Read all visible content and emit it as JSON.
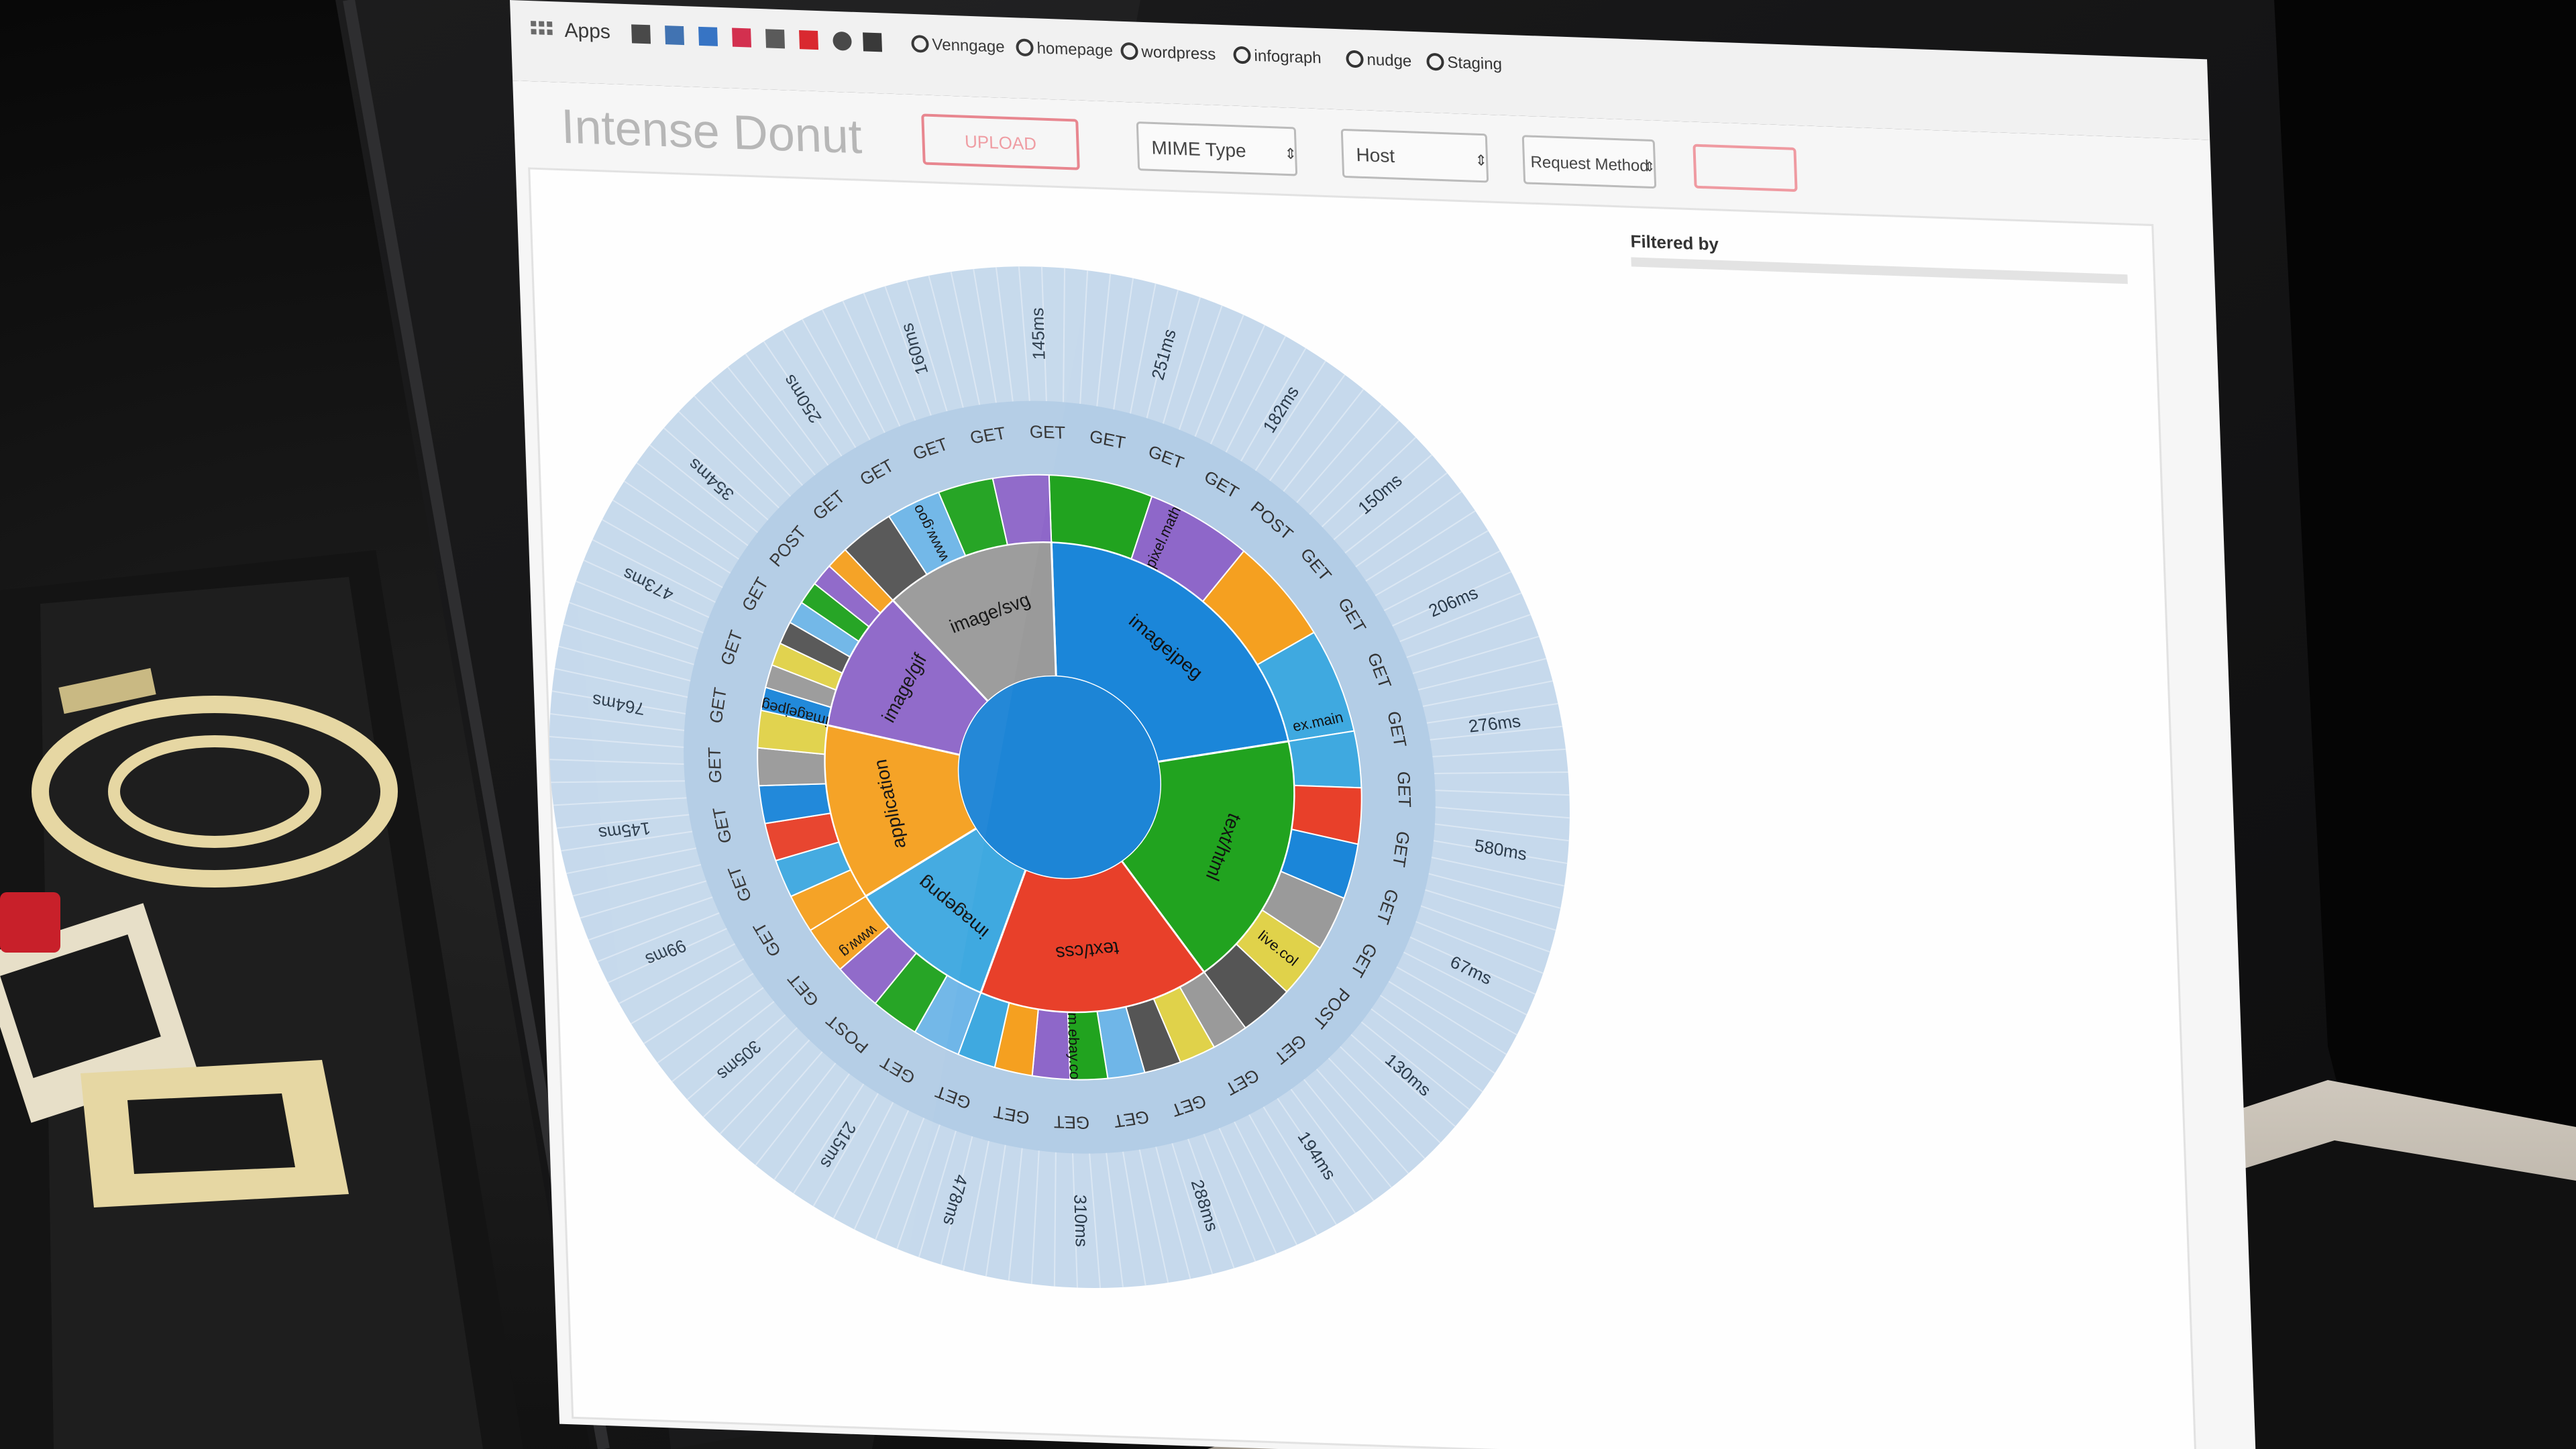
{
  "browser": {
    "apps_label": "Apps",
    "bookmarks": [
      {
        "label": "Venngage",
        "icon": "github-icon"
      },
      {
        "label": "homepage",
        "icon": "github-icon"
      },
      {
        "label": "wordpress",
        "icon": "github-icon"
      },
      {
        "label": "infograph",
        "icon": "github-icon"
      },
      {
        "label": "nudge",
        "icon": "github-icon"
      },
      {
        "label": "Staging",
        "icon": "github-icon"
      }
    ]
  },
  "app": {
    "title": "Intense Donut",
    "upload_label": "UPLOAD",
    "filters": [
      {
        "label": "MIME Type"
      },
      {
        "label": "Host"
      },
      {
        "label": "Request Method"
      }
    ],
    "filtered_by_label": "Filtered by"
  },
  "donut": {
    "inner_ring": [
      {
        "label": "imagejpeg",
        "color": "#1b86d9"
      },
      {
        "label": "text/html",
        "color": "#21a31f"
      },
      {
        "label": "text/css",
        "color": "#e8402a"
      },
      {
        "label": "imagepng",
        "color": "#3fa9e0"
      },
      {
        "label": "application",
        "color": "#f5a020"
      },
      {
        "label": "image/gif",
        "color": "#8e67c9"
      },
      {
        "label": "image/svg",
        "color": "#9a9a9a"
      }
    ],
    "host_labels": [
      "pixel.math",
      "ex.main",
      "live.col",
      "m.ebay.co",
      "www.g",
      "imagejpeg",
      "www.goo"
    ],
    "method_labels": [
      "GET",
      "POST"
    ],
    "timing_labels": [
      "145ms",
      "251ms",
      "182ms",
      "150ms",
      "206ms",
      "276ms",
      "580ms",
      "67ms",
      "130ms",
      "194ms",
      "288ms",
      "310ms",
      "478ms",
      "215ms",
      "305ms",
      "99ms",
      "145ms",
      "764ms",
      "473ms",
      "354ms",
      "250ms",
      "160ms"
    ],
    "colors": {
      "outer_band": "#c6d9ec",
      "middle_band": "#b3cde6",
      "center": "#1d85d6"
    }
  }
}
